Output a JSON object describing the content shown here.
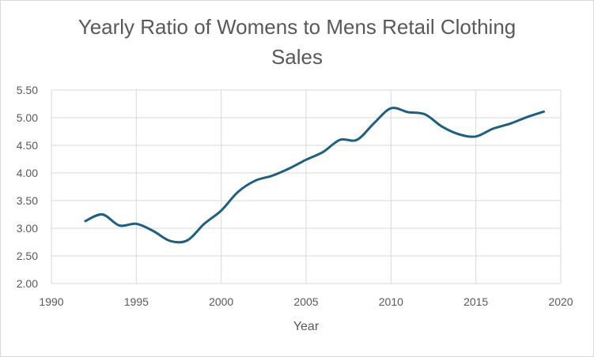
{
  "chart_data": {
    "type": "line",
    "title_line1": "Yearly Ratio of Womens to Mens Retail Clothing",
    "title_line2": "Sales",
    "xlabel": "Year",
    "ylabel": "",
    "xlim": [
      1990,
      2020
    ],
    "ylim": [
      2.0,
      5.5
    ],
    "x_ticks": [
      "1990",
      "1995",
      "2000",
      "2005",
      "2010",
      "2015",
      "2020"
    ],
    "y_ticks": [
      "2.00",
      "2.50",
      "3.00",
      "3.50",
      "4.00",
      "4.50",
      "5.00",
      "5.50"
    ],
    "grid": true,
    "legend": "none",
    "series": [
      {
        "color": "#1f5f7f",
        "x": [
          1992,
          1993,
          1994,
          1995,
          1996,
          1997,
          1998,
          1999,
          2000,
          2001,
          2002,
          2003,
          2004,
          2005,
          2006,
          2007,
          2008,
          2009,
          2010,
          2011,
          2012,
          2013,
          2014,
          2015,
          2016,
          2017,
          2018,
          2019
        ],
        "y": [
          3.13,
          3.25,
          3.05,
          3.08,
          2.95,
          2.77,
          2.78,
          3.08,
          3.32,
          3.66,
          3.86,
          3.95,
          4.08,
          4.24,
          4.38,
          4.6,
          4.6,
          4.9,
          5.17,
          5.1,
          5.06,
          4.84,
          4.7,
          4.66,
          4.8,
          4.89,
          5.01,
          5.11
        ]
      }
    ]
  }
}
